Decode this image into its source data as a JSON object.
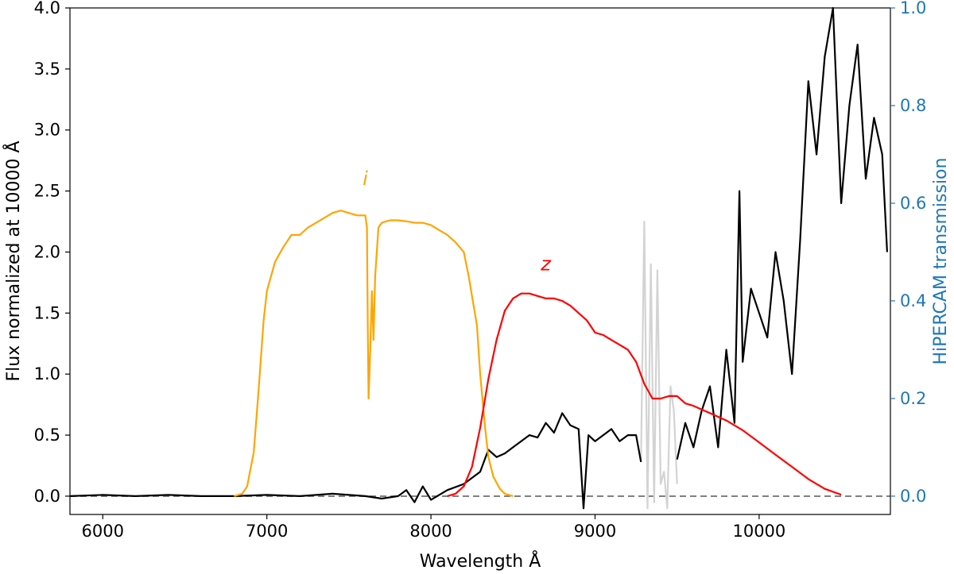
{
  "chart_data": {
    "type": "line",
    "xlabel": "Wavelength Å",
    "ylabel": "Flux normalized at 10000 Å",
    "ylabel_right": "HiPERCAM transmission",
    "xlim": [
      5800,
      10800
    ],
    "ylim": [
      -0.15,
      4.0
    ],
    "ylim_right": [
      -0.0375,
      1.0
    ],
    "x_ticks": [
      6000,
      7000,
      8000,
      9000,
      10000
    ],
    "y_ticks": [
      0.0,
      0.5,
      1.0,
      1.5,
      2.0,
      2.5,
      3.0,
      3.5,
      4.0
    ],
    "y_ticks_right": [
      0.0,
      0.2,
      0.4,
      0.6,
      0.8,
      1.0
    ],
    "x_tick_labels": [
      "6000",
      "7000",
      "8000",
      "9000",
      "10000"
    ],
    "y_tick_labels": [
      "0.0",
      "0.5",
      "1.0",
      "1.5",
      "2.0",
      "2.5",
      "3.0",
      "3.5",
      "4.0"
    ],
    "y_tick_labels_right": [
      "0.0",
      "0.2",
      "0.4",
      "0.6",
      "0.8",
      "1.0"
    ],
    "colors": {
      "i_filter": "#ffa500",
      "z_filter": "#ff0000",
      "spectrum": "#000000",
      "telluric": "#d3d3d3",
      "zero_line": "#808080",
      "right_axis": "#1f77b4"
    },
    "annotations": [
      {
        "text": "i",
        "x": 7600,
        "y": 2.55,
        "color": "#ffa500"
      },
      {
        "text": "z",
        "x": 8700,
        "y": 1.85,
        "color": "#ff0000"
      }
    ],
    "zero_line": {
      "y": 0.0,
      "x": [
        5800,
        10800
      ],
      "style": "dashed"
    },
    "series": [
      {
        "role": "i-band transmission",
        "axis": "right",
        "x": [
          6800,
          6850,
          6880,
          6920,
          6950,
          6980,
          7000,
          7050,
          7100,
          7150,
          7200,
          7250,
          7300,
          7350,
          7400,
          7450,
          7500,
          7550,
          7580,
          7600,
          7610,
          7615,
          7620,
          7630,
          7640,
          7650,
          7660,
          7680,
          7700,
          7750,
          7800,
          7850,
          7900,
          7950,
          8000,
          8050,
          8100,
          8150,
          8200,
          8230,
          8250,
          8280,
          8300,
          8330,
          8350,
          8380,
          8420,
          8450,
          8500
        ],
        "y": [
          0.0,
          0.005,
          0.02,
          0.09,
          0.22,
          0.36,
          0.42,
          0.48,
          0.51,
          0.535,
          0.535,
          0.55,
          0.56,
          0.57,
          0.58,
          0.585,
          0.58,
          0.575,
          0.575,
          0.575,
          0.55,
          0.35,
          0.2,
          0.3,
          0.42,
          0.32,
          0.45,
          0.55,
          0.56,
          0.565,
          0.565,
          0.563,
          0.56,
          0.56,
          0.555,
          0.545,
          0.535,
          0.52,
          0.5,
          0.45,
          0.41,
          0.35,
          0.25,
          0.14,
          0.08,
          0.04,
          0.015,
          0.005,
          0.0
        ]
      },
      {
        "role": "z-band transmission",
        "axis": "right",
        "x": [
          8100,
          8150,
          8200,
          8250,
          8300,
          8350,
          8400,
          8450,
          8500,
          8550,
          8600,
          8650,
          8700,
          8750,
          8800,
          8850,
          8900,
          8950,
          9000,
          9050,
          9100,
          9150,
          9200,
          9250,
          9300,
          9350,
          9400,
          9450,
          9500,
          9550,
          9600,
          9700,
          9800,
          9900,
          10000,
          10100,
          10200,
          10300,
          10400,
          10500
        ],
        "y": [
          0.0,
          0.005,
          0.02,
          0.06,
          0.14,
          0.24,
          0.32,
          0.38,
          0.405,
          0.415,
          0.415,
          0.41,
          0.405,
          0.405,
          0.4,
          0.39,
          0.375,
          0.36,
          0.335,
          0.33,
          0.32,
          0.31,
          0.3,
          0.275,
          0.23,
          0.2,
          0.2,
          0.205,
          0.205,
          0.19,
          0.185,
          0.17,
          0.155,
          0.135,
          0.11,
          0.085,
          0.06,
          0.035,
          0.015,
          0.003
        ]
      },
      {
        "role": "spectrum",
        "axis": "left",
        "x": [
          5800,
          6000,
          6200,
          6400,
          6600,
          6800,
          7000,
          7200,
          7400,
          7600,
          7700,
          7800,
          7850,
          7900,
          7950,
          8000,
          8100,
          8200,
          8300,
          8350,
          8400,
          8450,
          8500,
          8550,
          8600,
          8650,
          8700,
          8750,
          8800,
          8850,
          8900,
          8930,
          8960,
          9000,
          9050,
          9100,
          9150,
          9200,
          9250,
          9280
        ],
        "y": [
          0.0,
          0.01,
          0.0,
          0.01,
          0.0,
          0.0,
          0.01,
          0.0,
          0.02,
          0.0,
          -0.02,
          0.0,
          0.05,
          -0.05,
          0.08,
          -0.03,
          0.05,
          0.1,
          0.2,
          0.38,
          0.32,
          0.35,
          0.4,
          0.45,
          0.5,
          0.48,
          0.6,
          0.52,
          0.68,
          0.58,
          0.55,
          -0.1,
          0.5,
          0.45,
          0.5,
          0.55,
          0.45,
          0.5,
          0.5,
          0.28
        ]
      },
      {
        "role": "spectrum, telluric region",
        "axis": "left",
        "x": [
          9280,
          9300,
          9320,
          9340,
          9360,
          9380,
          9400,
          9420,
          9440,
          9460,
          9480,
          9500
        ],
        "y": [
          0.3,
          2.25,
          -0.1,
          1.9,
          -0.05,
          1.85,
          0.1,
          0.2,
          -0.1,
          0.9,
          0.7,
          0.1
        ]
      },
      {
        "role": "spectrum, noisy red end",
        "axis": "left",
        "x": [
          9500,
          9550,
          9600,
          9650,
          9700,
          9750,
          9800,
          9850,
          9880,
          9900,
          9950,
          10000,
          10050,
          10100,
          10150,
          10200,
          10250,
          10300,
          10350,
          10400,
          10450,
          10500,
          10550,
          10600,
          10650,
          10700,
          10750,
          10780
        ],
        "y": [
          0.3,
          0.6,
          0.4,
          0.7,
          0.9,
          0.4,
          1.2,
          0.6,
          2.5,
          1.1,
          1.7,
          1.5,
          1.3,
          2.0,
          1.6,
          1.0,
          2.1,
          3.4,
          2.8,
          3.6,
          4.0,
          2.4,
          3.2,
          3.7,
          2.6,
          3.1,
          2.8,
          2.0
        ]
      }
    ]
  }
}
